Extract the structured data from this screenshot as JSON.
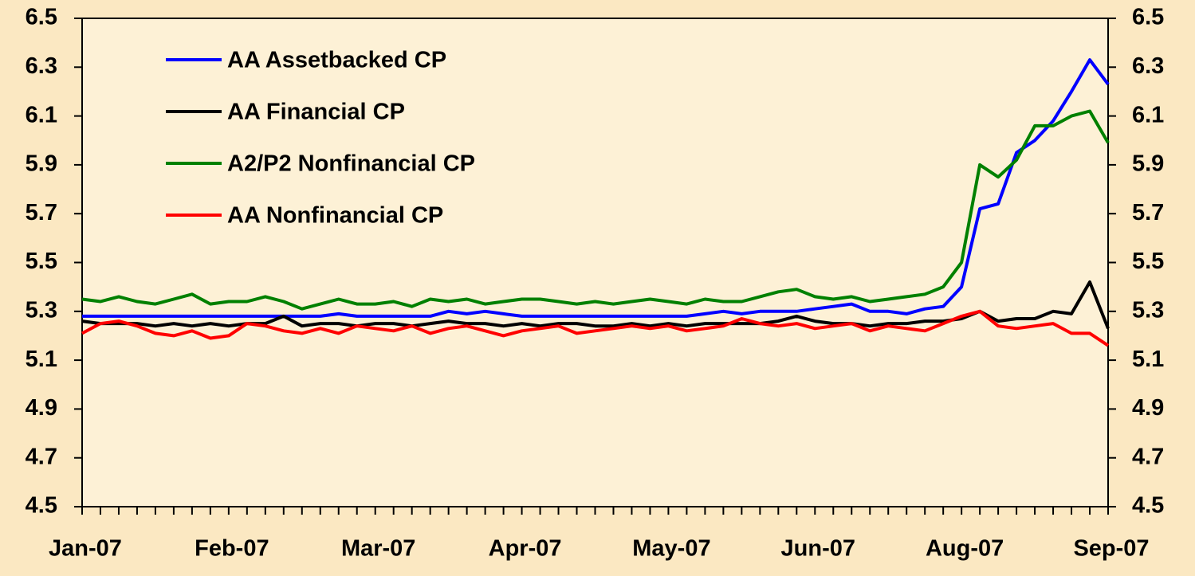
{
  "chart_data": {
    "type": "line",
    "categories": [
      "Jan-07",
      null,
      null,
      null,
      null,
      null,
      null,
      null,
      "Feb-07",
      null,
      null,
      null,
      null,
      null,
      null,
      null,
      "Mar-07",
      null,
      null,
      null,
      null,
      null,
      null,
      null,
      "Apr-07",
      null,
      null,
      null,
      null,
      null,
      null,
      null,
      "May-07",
      null,
      null,
      null,
      null,
      null,
      null,
      null,
      "Jun-07",
      null,
      null,
      null,
      null,
      null,
      null,
      null,
      "Aug-07",
      null,
      null,
      null,
      null,
      null,
      null,
      null,
      "Sep-07"
    ],
    "series": [
      {
        "name": "AA Assetbacked CP",
        "color": "#0000ff",
        "values": [
          5.28,
          5.28,
          5.28,
          5.28,
          5.28,
          5.28,
          5.28,
          5.28,
          5.28,
          5.28,
          5.28,
          5.28,
          5.28,
          5.28,
          5.29,
          5.28,
          5.28,
          5.28,
          5.28,
          5.28,
          5.3,
          5.29,
          5.3,
          5.29,
          5.28,
          5.28,
          5.28,
          5.28,
          5.28,
          5.28,
          5.28,
          5.28,
          5.28,
          5.28,
          5.29,
          5.3,
          5.29,
          5.3,
          5.3,
          5.3,
          5.31,
          5.32,
          5.33,
          5.3,
          5.3,
          5.29,
          5.31,
          5.32,
          5.4,
          5.72,
          5.74,
          5.95,
          6.0,
          6.08,
          6.2,
          6.33,
          6.23
        ]
      },
      {
        "name": "AA Financial CP",
        "color": "#000000",
        "values": [
          5.26,
          5.25,
          5.25,
          5.25,
          5.24,
          5.25,
          5.24,
          5.25,
          5.24,
          5.25,
          5.25,
          5.28,
          5.24,
          5.25,
          5.25,
          5.24,
          5.25,
          5.25,
          5.24,
          5.25,
          5.26,
          5.25,
          5.25,
          5.24,
          5.25,
          5.24,
          5.25,
          5.25,
          5.24,
          5.24,
          5.25,
          5.24,
          5.25,
          5.24,
          5.25,
          5.25,
          5.25,
          5.25,
          5.26,
          5.28,
          5.26,
          5.25,
          5.25,
          5.24,
          5.25,
          5.25,
          5.26,
          5.26,
          5.27,
          5.3,
          5.26,
          5.27,
          5.27,
          5.3,
          5.29,
          5.42,
          5.23
        ]
      },
      {
        "name": "A2/P2 Nonfinancial CP",
        "color": "#008000",
        "values": [
          5.35,
          5.34,
          5.36,
          5.34,
          5.33,
          5.35,
          5.37,
          5.33,
          5.34,
          5.34,
          5.36,
          5.34,
          5.31,
          5.33,
          5.35,
          5.33,
          5.33,
          5.34,
          5.32,
          5.35,
          5.34,
          5.35,
          5.33,
          5.34,
          5.35,
          5.35,
          5.34,
          5.33,
          5.34,
          5.33,
          5.34,
          5.35,
          5.34,
          5.33,
          5.35,
          5.34,
          5.34,
          5.36,
          5.38,
          5.39,
          5.36,
          5.35,
          5.36,
          5.34,
          5.35,
          5.36,
          5.37,
          5.4,
          5.5,
          5.9,
          5.85,
          5.92,
          6.06,
          6.06,
          6.1,
          6.12,
          5.99
        ]
      },
      {
        "name": "AA Nonfinancial CP",
        "color": "#ff0000",
        "values": [
          5.21,
          5.25,
          5.26,
          5.24,
          5.21,
          5.2,
          5.22,
          5.19,
          5.2,
          5.25,
          5.24,
          5.22,
          5.21,
          5.23,
          5.21,
          5.24,
          5.23,
          5.22,
          5.24,
          5.21,
          5.23,
          5.24,
          5.22,
          5.2,
          5.22,
          5.23,
          5.24,
          5.21,
          5.22,
          5.23,
          5.24,
          5.23,
          5.24,
          5.22,
          5.23,
          5.24,
          5.27,
          5.25,
          5.24,
          5.25,
          5.23,
          5.24,
          5.25,
          5.22,
          5.24,
          5.23,
          5.22,
          5.25,
          5.28,
          5.3,
          5.24,
          5.23,
          5.24,
          5.25,
          5.21,
          5.21,
          5.16
        ]
      }
    ],
    "ylim": [
      4.5,
      6.5
    ],
    "yticks": [
      4.5,
      4.7,
      4.9,
      5.1,
      5.3,
      5.5,
      5.7,
      5.9,
      6.1,
      6.3,
      6.5
    ],
    "y2lim": [
      4.5,
      6.5
    ],
    "y2ticks": [
      4.5,
      4.7,
      4.9,
      5.1,
      5.3,
      5.5,
      5.7,
      5.9,
      6.1,
      6.3,
      6.5
    ],
    "legend": "upper left",
    "grid": false
  }
}
